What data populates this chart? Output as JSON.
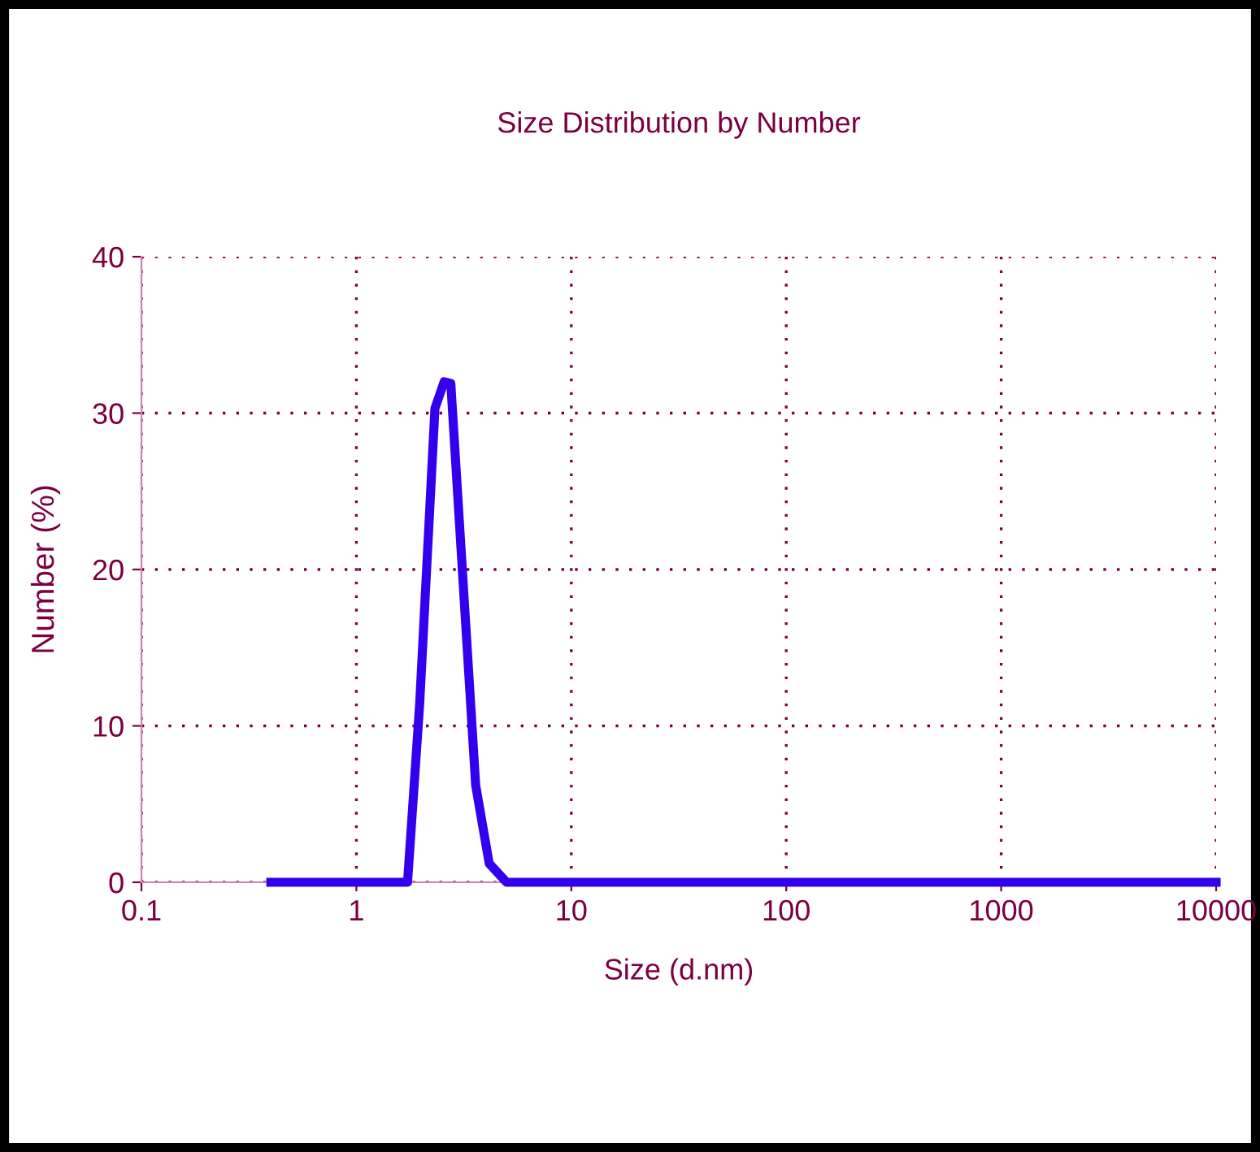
{
  "chart_data": {
    "type": "line",
    "title": "Size Distribution by Number",
    "xlabel": "Size (d.nm)",
    "ylabel": "Number (%)",
    "log": "x",
    "series": [
      {
        "color": "#3300ee",
        "x": [
          0.4,
          1.73,
          1.97,
          2.32,
          2.56,
          2.75,
          3.59,
          4.15,
          5.0,
          10000
        ],
        "values": [
          0,
          0,
          11.4,
          30.3,
          32.0,
          31.9,
          6.2,
          1.2,
          0,
          0
        ]
      }
    ],
    "xlim": [
      0.1,
      10000
    ],
    "xticks": [
      0.1,
      1,
      10,
      100,
      1000,
      10000
    ],
    "ylim": [
      0,
      40
    ],
    "yticks": [
      0,
      10,
      20,
      30,
      40
    ],
    "grid": true,
    "line_style": "solid",
    "marker": "none"
  }
}
